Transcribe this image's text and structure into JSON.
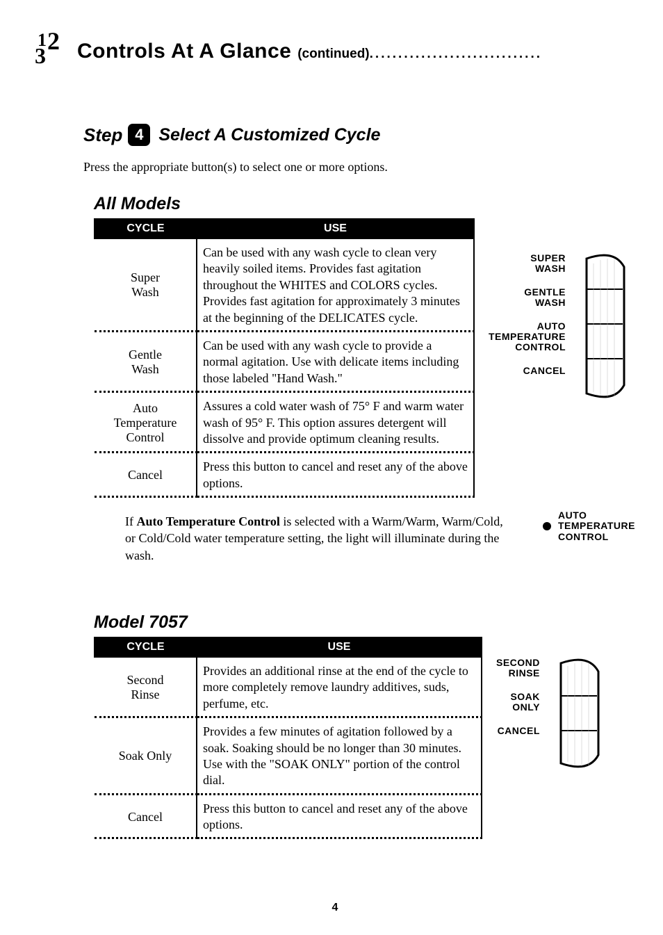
{
  "header": {
    "title_main": "Controls At A Glance",
    "title_cont": "(continued)"
  },
  "step": {
    "label": "Step",
    "number": "4",
    "title": "Select A Customized Cycle"
  },
  "intro": "Press the appropriate button(s) to select one or more options.",
  "sections": [
    {
      "title": "All Models",
      "th_cycle": "CYCLE",
      "th_use": "USE",
      "rows": [
        {
          "cycle": "Super\nWash",
          "use": "Can be used with any wash cycle to clean very heavily soiled items. Provides fast agitation throughout the WHITES and COLORS cycles. Provides fast agitation for approximately 3 minutes at the beginning of the DELICATES cycle."
        },
        {
          "cycle": "Gentle\nWash",
          "use": "Can be used with any wash cycle to provide a normal agitation. Use with delicate items including those labeled \"Hand Wash.\""
        },
        {
          "cycle": "Auto\nTemperature\nControl",
          "use": "Assures a cold water wash of 75° F and warm water wash of 95° F. This option assures detergent will dissolve and provide optimum cleaning results."
        },
        {
          "cycle": "Cancel",
          "use": "Press this button to cancel and reset any of the above options."
        }
      ],
      "panel_labels": [
        "SUPER\nWASH",
        "GENTLE\nWASH",
        "AUTO\nTEMPERATURE\nCONTROL",
        "CANCEL"
      ],
      "note_html": "If <b>Auto Temperature Control</b> is selected with a Warm/Warm, Warm/Cold, or Cold/Cold water temperature setting, the light will illuminate during the wash.",
      "indicator_label": "AUTO\nTEMPERATURE\nCONTROL"
    },
    {
      "title": "Model 7057",
      "th_cycle": "CYCLE",
      "th_use": "USE",
      "rows": [
        {
          "cycle": "Second\nRinse",
          "use": "Provides an additional rinse at the end of the cycle to more completely remove laundry additives, suds, perfume, etc."
        },
        {
          "cycle": "Soak Only",
          "use": "Provides a few minutes of agitation followed by a soak. Soaking should be no longer than 30 minutes. Use with the \"SOAK ONLY\" portion of the control dial."
        },
        {
          "cycle": "Cancel",
          "use": "Press this button to cancel and reset any of the above options."
        }
      ],
      "panel_labels": [
        "SECOND\nRINSE",
        "SOAK\nONLY",
        "CANCEL"
      ]
    }
  ],
  "page_number": "4"
}
